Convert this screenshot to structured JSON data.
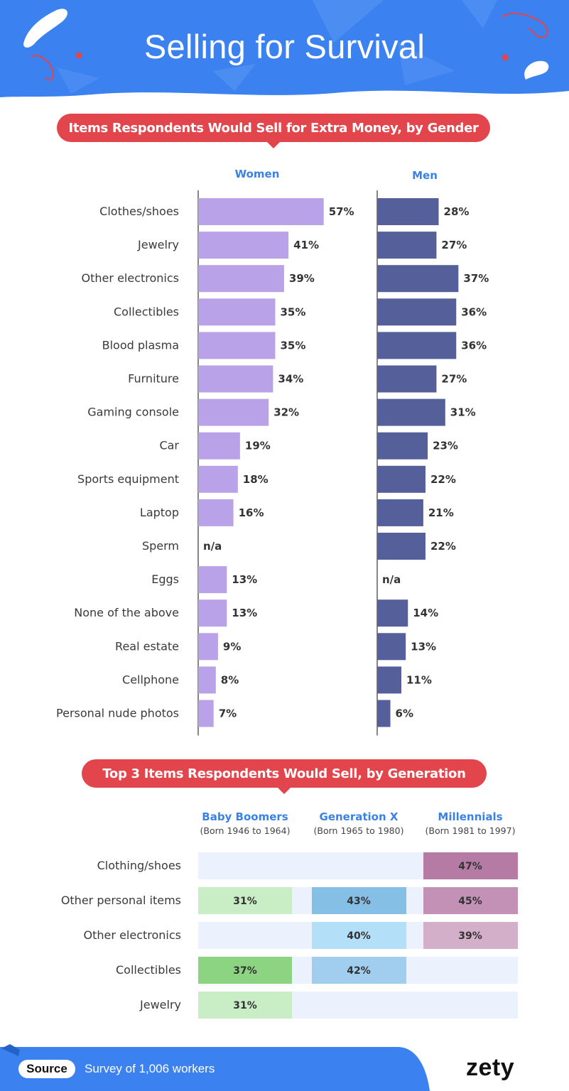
{
  "page": {
    "title": "Selling for Survival",
    "colors": {
      "header_blue": "#3b82f0",
      "pill_red": "#e2454b",
      "label_blue": "#3a82e4",
      "women_bar": "#b9a2e8",
      "men_bar": "#555f99"
    }
  },
  "gender_section": {
    "heading": "Items Respondents Would Sell for Extra Money, by Gender"
  },
  "generation_section": {
    "heading": "Top 3 Items Respondents Would Sell, by Generation"
  },
  "chart_data": [
    {
      "type": "bar",
      "orientation": "horizontal",
      "title": "Items Respondents Would Sell for Extra Money, by Gender",
      "unit": "%",
      "categories": [
        "Clothes/shoes",
        "Jewelry",
        "Other electronics",
        "Collectibles",
        "Blood plasma",
        "Furniture",
        "Gaming console",
        "Car",
        "Sports equipment",
        "Laptop",
        "Sperm",
        "Eggs",
        "None of the above",
        "Real estate",
        "Cellphone",
        "Personal nude photos"
      ],
      "series": [
        {
          "name": "Women",
          "color": "#b9a2e8",
          "values": [
            57,
            41,
            39,
            35,
            35,
            34,
            32,
            19,
            18,
            16,
            null,
            13,
            13,
            9,
            8,
            7
          ]
        },
        {
          "name": "Men",
          "color": "#555f99",
          "values": [
            28,
            27,
            37,
            36,
            36,
            27,
            31,
            23,
            22,
            21,
            22,
            null,
            14,
            13,
            11,
            6
          ]
        }
      ],
      "missing_label": "n/a"
    },
    {
      "type": "table",
      "title": "Top 3 Items Respondents Would Sell, by Generation",
      "unit": "%",
      "columns": [
        {
          "name": "Baby Boomers",
          "sub": "(Born 1946 to 1964)"
        },
        {
          "name": "Generation X",
          "sub": "(Born 1965 to 1980)"
        },
        {
          "name": "Millennials",
          "sub": "(Born 1981 to 1997)"
        }
      ],
      "rows": [
        {
          "label": "Clothing/shoes",
          "values": [
            null,
            null,
            47
          ],
          "colors": [
            null,
            null,
            "#b57ba4"
          ]
        },
        {
          "label": "Other personal items",
          "values": [
            31,
            43,
            45
          ],
          "colors": [
            "#c9eec6",
            "#86bfe6",
            "#c390b6"
          ]
        },
        {
          "label": "Other electronics",
          "values": [
            null,
            40,
            39
          ],
          "colors": [
            null,
            "#b3dff8",
            "#d4afca"
          ]
        },
        {
          "label": "Collectibles",
          "values": [
            37,
            42,
            null
          ],
          "colors": [
            "#8cd482",
            "#a1cdee",
            null
          ]
        },
        {
          "label": "Jewelry",
          "values": [
            31,
            null,
            null
          ],
          "colors": [
            "#c9eec6",
            null,
            null
          ]
        }
      ]
    }
  ],
  "footer": {
    "source_label": "Source",
    "source_text": "Survey of 1,006 workers",
    "brand": "zety"
  }
}
